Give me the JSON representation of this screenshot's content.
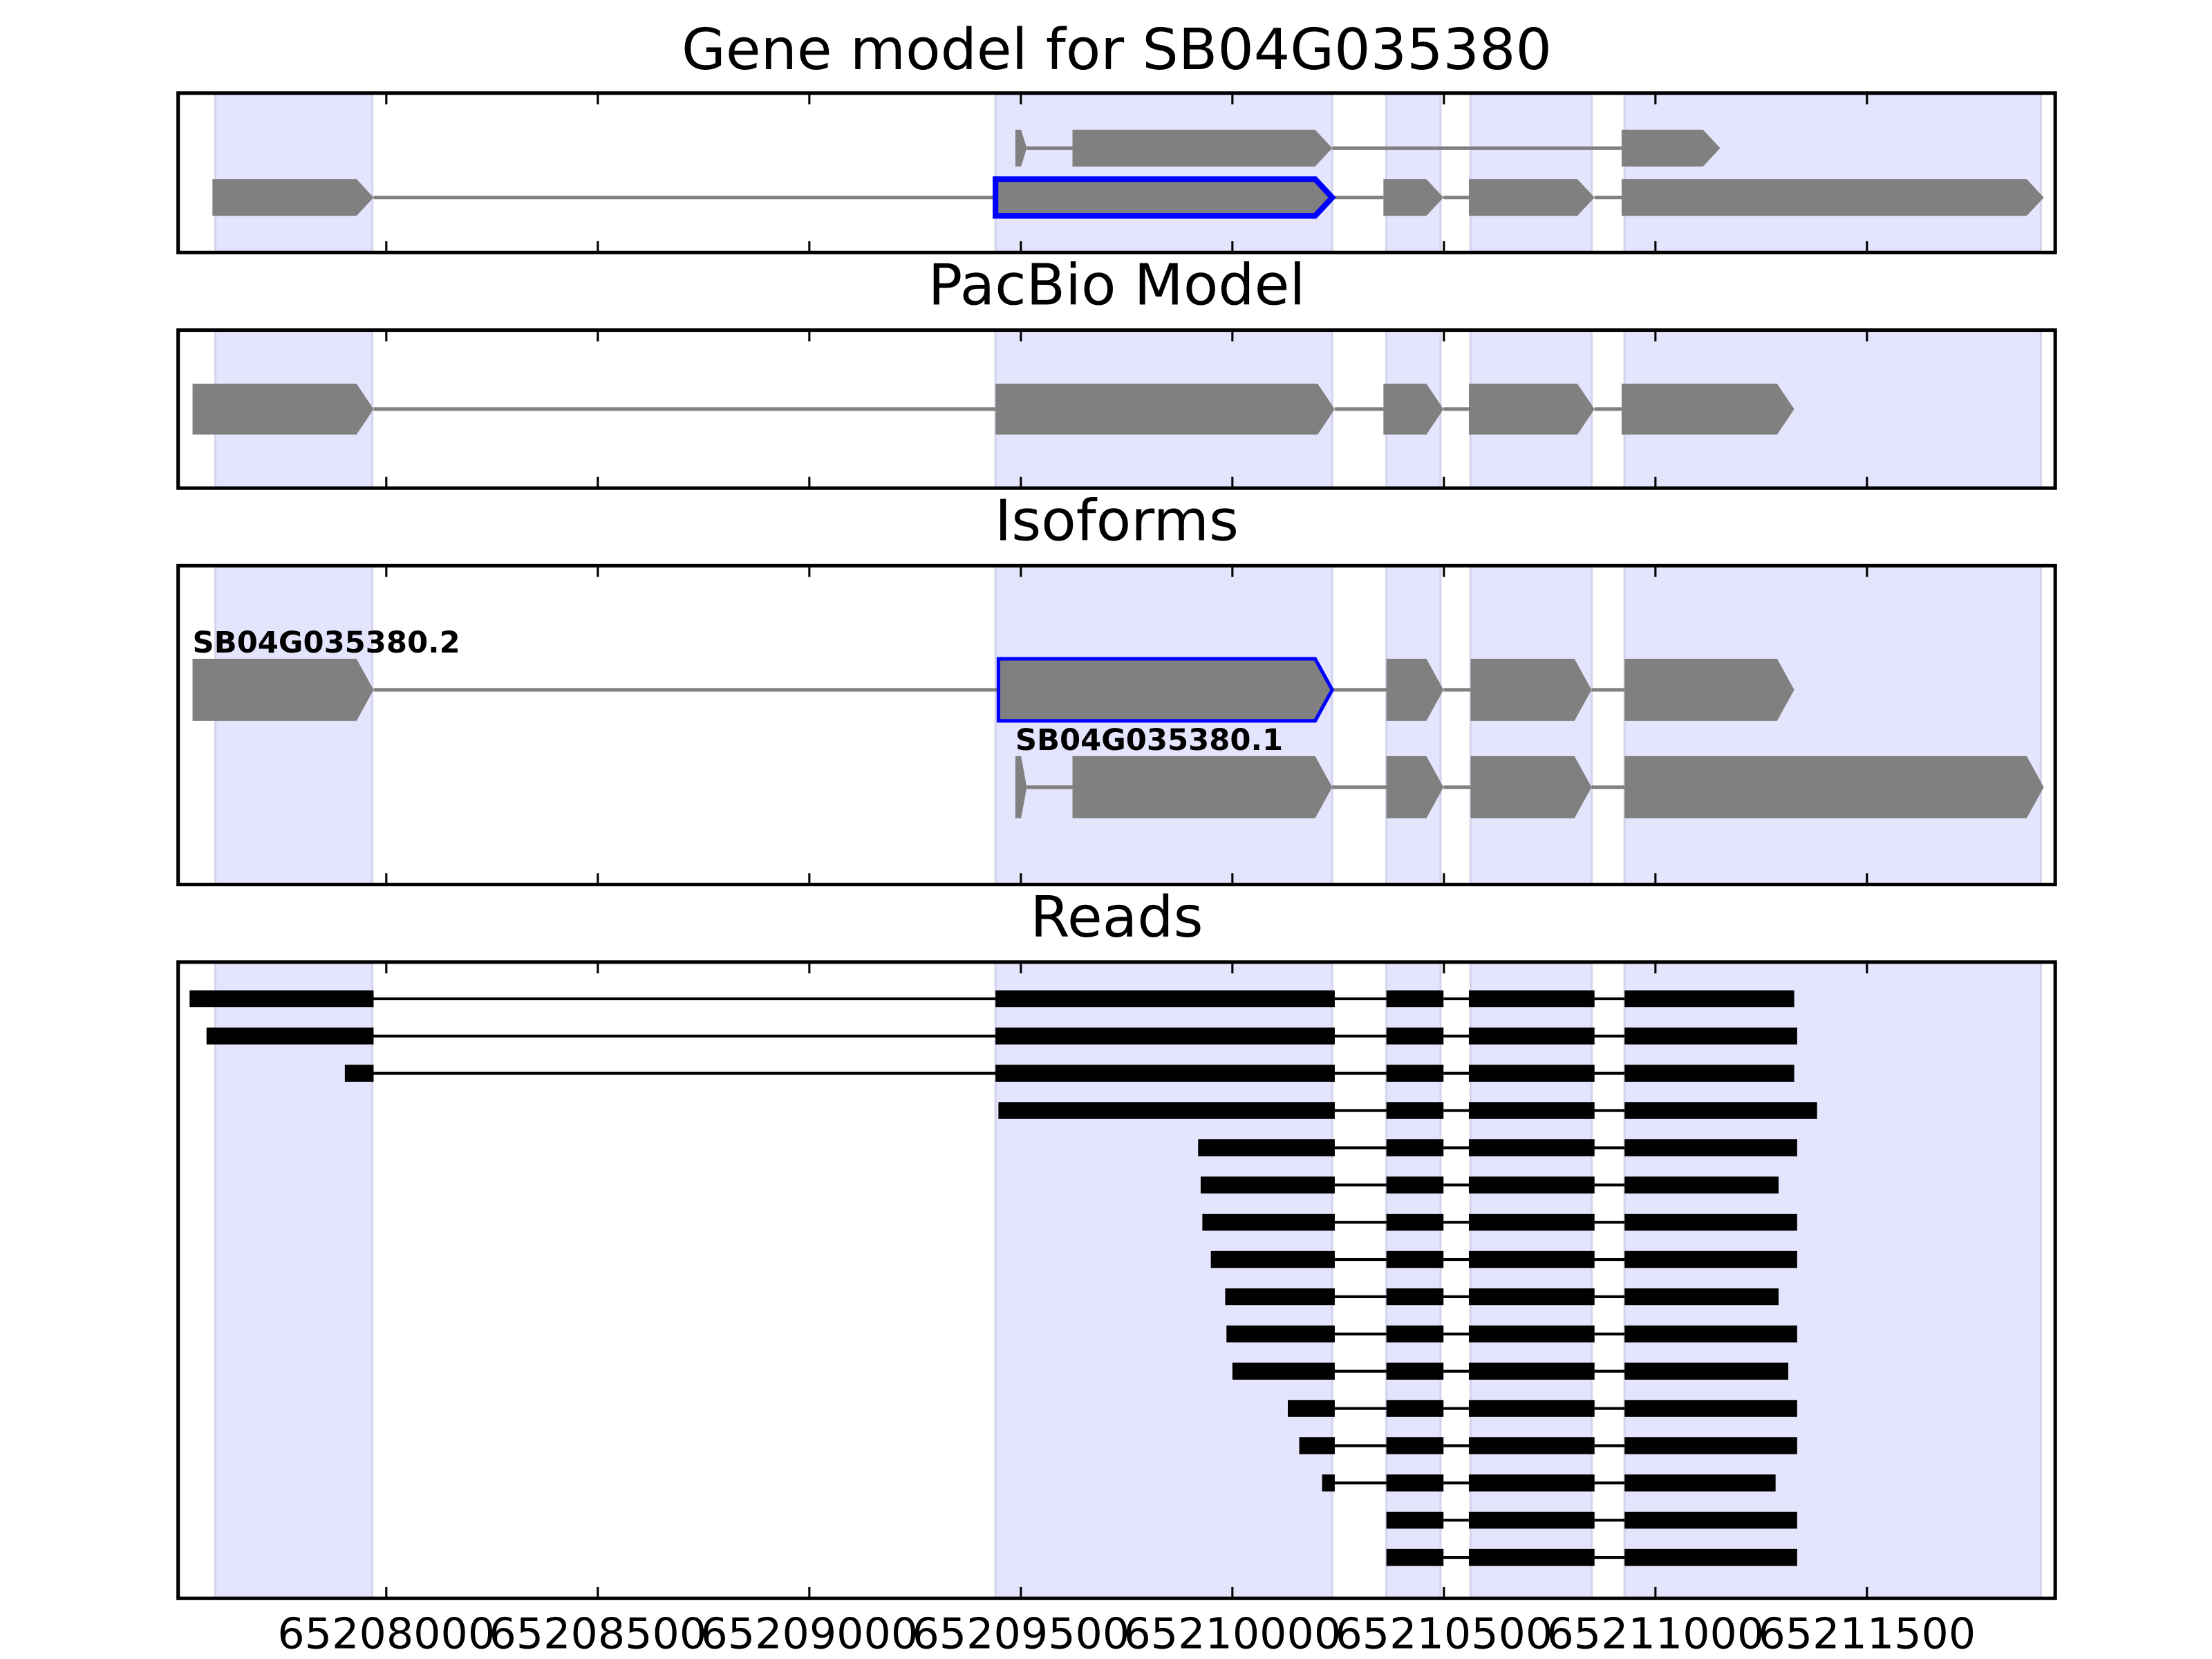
{
  "chart_data": {
    "type": "gene_tracks",
    "xlim": [
      65207508,
      65211945
    ],
    "xticks": [
      65208000,
      65208500,
      65209000,
      65209500,
      65210000,
      65210500,
      65211000,
      65211500
    ],
    "shaded": [
      [
        65207596,
        65207967
      ],
      [
        65209440,
        65210236
      ],
      [
        65210364,
        65210492
      ],
      [
        65210563,
        65210849
      ],
      [
        65210927,
        65211911
      ]
    ],
    "shade_color": "#e4e4fc",
    "color": "#808080",
    "highlight_color": "#0000ff",
    "read_color": "#000000",
    "panels": [
      {
        "title": "Gene model for SB04G035380",
        "transcripts": [
          {
            "exons": [
              [
                65209487,
                65209514
              ],
              [
                65209622,
                65210236
              ],
              [
                65210920,
                65211153
              ]
            ]
          },
          {
            "highlight": 1,
            "exons": [
              [
                65207589,
                65207970
              ],
              [
                65209440,
                65210236
              ],
              [
                65210357,
                65210499
              ],
              [
                65210559,
                65210856
              ],
              [
                65210920,
                65211918
              ]
            ]
          }
        ]
      },
      {
        "title": "PacBio Model",
        "transcripts": [
          {
            "exons": [
              [
                65207542,
                65207970
              ],
              [
                65209440,
                65210242
              ],
              [
                65210357,
                65210499
              ],
              [
                65210559,
                65210856
              ],
              [
                65210920,
                65211328
              ]
            ]
          }
        ]
      },
      {
        "title": "Isoforms",
        "transcripts": [
          {
            "label": "SB04G035380.2",
            "highlight": 1,
            "exons": [
              [
                65207542,
                65207970
              ],
              [
                65209447,
                65210236
              ],
              [
                65210364,
                65210499
              ],
              [
                65210563,
                65210849
              ],
              [
                65210927,
                65211328
              ]
            ]
          },
          {
            "label": "SB04G035380.1",
            "exons": [
              [
                65209487,
                65209514
              ],
              [
                65209622,
                65210236
              ],
              [
                65210364,
                65210499
              ],
              [
                65210563,
                65210849
              ],
              [
                65210927,
                65211918
              ]
            ]
          }
        ]
      },
      {
        "title": "Reads",
        "style": "reads",
        "transcripts": [
          {
            "exons": [
              [
                65207535,
                65207970
              ],
              [
                65209440,
                65210242
              ],
              [
                65210364,
                65210499
              ],
              [
                65210559,
                65210856
              ],
              [
                65210927,
                65211328
              ]
            ]
          },
          {
            "exons": [
              [
                65207575,
                65207970
              ],
              [
                65209440,
                65210242
              ],
              [
                65210364,
                65210499
              ],
              [
                65210559,
                65210856
              ],
              [
                65210927,
                65211335
              ]
            ]
          },
          {
            "exons": [
              [
                65207902,
                65207970
              ],
              [
                65209440,
                65210242
              ],
              [
                65210364,
                65210499
              ],
              [
                65210559,
                65210856
              ],
              [
                65210927,
                65211328
              ]
            ]
          },
          {
            "exons": [
              [
                65209447,
                65210242
              ],
              [
                65210364,
                65210499
              ],
              [
                65210559,
                65210856
              ],
              [
                65210927,
                65211382
              ]
            ]
          },
          {
            "exons": [
              [
                65209919,
                65210242
              ],
              [
                65210364,
                65210499
              ],
              [
                65210559,
                65210856
              ],
              [
                65210927,
                65211335
              ]
            ]
          },
          {
            "exons": [
              [
                65209925,
                65210242
              ],
              [
                65210364,
                65210499
              ],
              [
                65210559,
                65210856
              ],
              [
                65210927,
                65211291
              ]
            ]
          },
          {
            "exons": [
              [
                65209929,
                65210242
              ],
              [
                65210364,
                65210499
              ],
              [
                65210559,
                65210856
              ],
              [
                65210927,
                65211335
              ]
            ]
          },
          {
            "exons": [
              [
                65209949,
                65210242
              ],
              [
                65210364,
                65210499
              ],
              [
                65210559,
                65210856
              ],
              [
                65210927,
                65211335
              ]
            ]
          },
          {
            "exons": [
              [
                65209983,
                65210242
              ],
              [
                65210364,
                65210499
              ],
              [
                65210559,
                65210856
              ],
              [
                65210927,
                65211291
              ]
            ]
          },
          {
            "exons": [
              [
                65209986,
                65210242
              ],
              [
                65210364,
                65210499
              ],
              [
                65210559,
                65210856
              ],
              [
                65210927,
                65211335
              ]
            ]
          },
          {
            "exons": [
              [
                65210000,
                65210242
              ],
              [
                65210364,
                65210499
              ],
              [
                65210559,
                65210856
              ],
              [
                65210927,
                65211314
              ]
            ]
          },
          {
            "exons": [
              [
                65210131,
                65210242
              ],
              [
                65210364,
                65210499
              ],
              [
                65210559,
                65210856
              ],
              [
                65210927,
                65211335
              ]
            ]
          },
          {
            "exons": [
              [
                65210158,
                65210242
              ],
              [
                65210364,
                65210499
              ],
              [
                65210559,
                65210856
              ],
              [
                65210927,
                65211335
              ]
            ]
          },
          {
            "exons": [
              [
                65210212,
                65210242
              ],
              [
                65210364,
                65210499
              ],
              [
                65210559,
                65210856
              ],
              [
                65210927,
                65211284
              ]
            ]
          },
          {
            "exons": [
              [
                65210364,
                65210499
              ],
              [
                65210559,
                65210856
              ],
              [
                65210927,
                65211335
              ]
            ]
          },
          {
            "exons": [
              [
                65210364,
                65210499
              ],
              [
                65210559,
                65210856
              ],
              [
                65210927,
                65211335
              ]
            ]
          }
        ]
      }
    ]
  }
}
